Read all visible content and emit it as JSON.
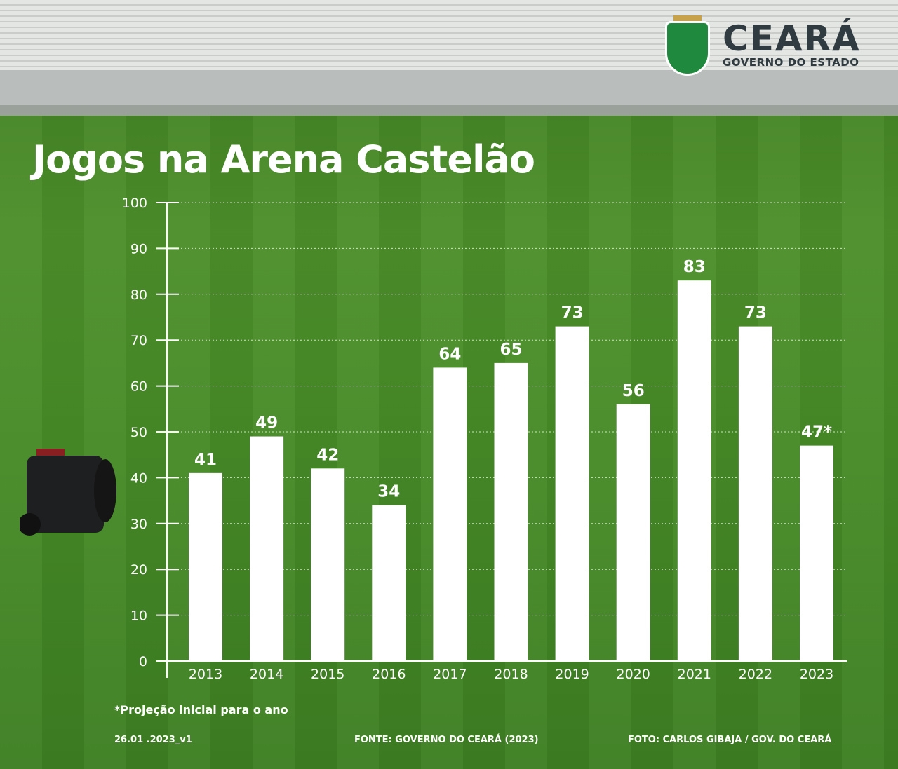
{
  "logo": {
    "name": "CEARÁ",
    "subtitle": "GOVERNO DO ESTADO"
  },
  "chart_data": {
    "type": "bar",
    "title": "Jogos na Arena Castelão",
    "categories": [
      "2013",
      "2014",
      "2015",
      "2016",
      "2017",
      "2018",
      "2019",
      "2020",
      "2021",
      "2022",
      "2023"
    ],
    "values": [
      41,
      49,
      42,
      34,
      64,
      65,
      73,
      56,
      83,
      73,
      47
    ],
    "data_labels": [
      "41",
      "49",
      "42",
      "34",
      "64",
      "65",
      "73",
      "56",
      "83",
      "73",
      "47*"
    ],
    "ylim": [
      0,
      100
    ],
    "yticks": [
      0,
      10,
      20,
      30,
      40,
      50,
      60,
      70,
      80,
      90,
      100
    ],
    "grid": true,
    "bar_color": "#ffffff"
  },
  "footnote": "*Projeção inicial para o ano",
  "footer": {
    "version": "26.01 .2023_v1",
    "source": "FONTE: GOVERNO DO CEARÁ (2023)",
    "photo": "FOTO: CARLOS GIBAJA / GOV. DO CEARÁ"
  }
}
